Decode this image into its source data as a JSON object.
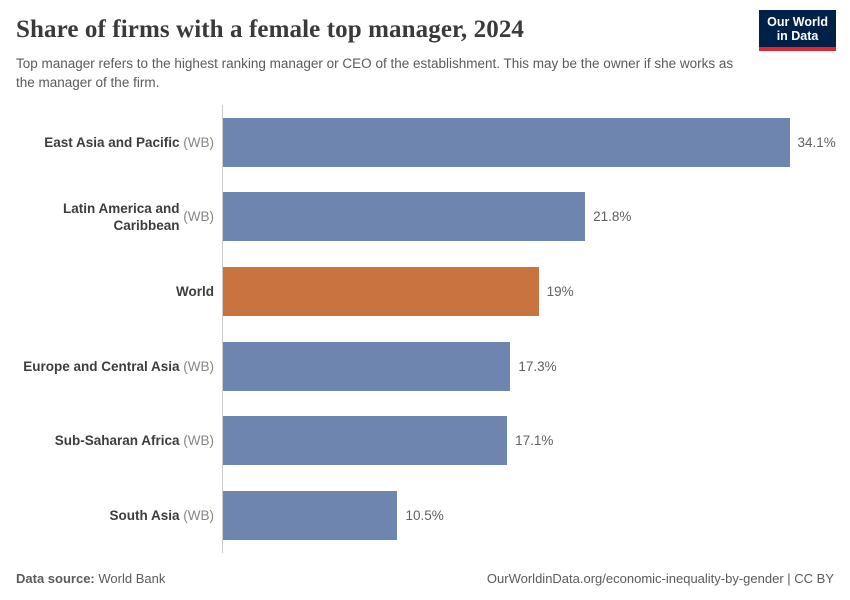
{
  "header": {
    "title": "Share of firms with a female top manager, 2024",
    "subtitle": "Top manager refers to the highest ranking manager or CEO of the establishment. This may be the owner if she works as the manager of the firm.",
    "logo": {
      "line1": "Our World",
      "line2": "in Data",
      "bg_color": "#002147",
      "stripe_color": "#e2262b"
    }
  },
  "chart_data": {
    "type": "bar",
    "orientation": "horizontal",
    "title": "Share of firms with a female top manager, 2024",
    "unit": "%",
    "grid": false,
    "legend": false,
    "xlim": [
      0,
      37.5
    ],
    "categories": [
      "East Asia and Pacific",
      "Latin America and Caribbean",
      "World",
      "Europe and Central Asia",
      "Sub-Saharan Africa",
      "South Asia"
    ],
    "category_suffixes": [
      "(WB)",
      "(WB)",
      "",
      "(WB)",
      "(WB)",
      "(WB)"
    ],
    "values": [
      34.1,
      21.8,
      19,
      17.3,
      17.1,
      10.5
    ],
    "value_labels": [
      "34.1%",
      "21.8%",
      "19%",
      "17.3%",
      "17.1%",
      "10.5%"
    ],
    "bar_colors": [
      "#6e85af",
      "#6e85af",
      "#c9733f",
      "#6e85af",
      "#6e85af",
      "#6e85af"
    ],
    "colors": {
      "default_bar": "#6e85af",
      "highlight_bar": "#c9733f",
      "axis_line": "#cccccc"
    }
  },
  "footer": {
    "datasource_label": "Data source:",
    "datasource_value": "World Bank",
    "link": "OurWorldinData.org/economic-inequality-by-gender",
    "license": "| CC BY"
  }
}
